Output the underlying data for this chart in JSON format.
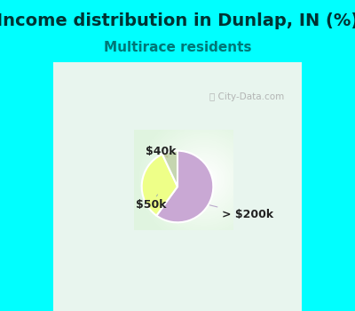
{
  "title": "Income distribution in Dunlap, IN (%)",
  "subtitle": "Multirace residents",
  "title_color": "#006666",
  "subtitle_color": "#008888",
  "background_color": "#00FFFF",
  "slices": [
    {
      "label": "> $200k",
      "value": 60,
      "color": "#C9A8D4"
    },
    {
      "label": "$40k",
      "value": 33,
      "color": "#EEFF88"
    },
    {
      "label": "$50k",
      "value": 7,
      "color": "#C5D5B0"
    }
  ],
  "watermark": "City-Data.com",
  "figsize": [
    4.0,
    3.5
  ],
  "dpi": 100,
  "title_fontsize": 14,
  "subtitle_fontsize": 11
}
